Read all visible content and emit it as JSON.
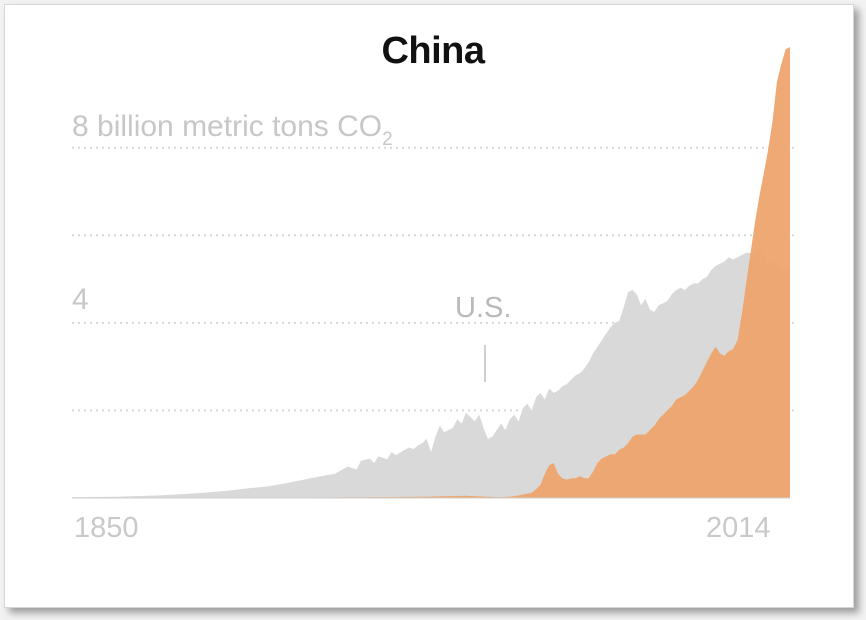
{
  "chart_data": {
    "type": "area",
    "title": "China",
    "ylabel_main": "8 billion metric tons CO",
    "ylabel_sub": "2",
    "ytick_mid": "4",
    "xtick_start": "1850",
    "xtick_end": "2014",
    "annotation": "U.S.",
    "xlim": [
      1850,
      2014
    ],
    "ylim": [
      0,
      10.3
    ],
    "gridlines": [
      2,
      4,
      6,
      8
    ],
    "colors": {
      "us": "#d9d9d9",
      "china": "#eda46d",
      "grid": "#d8d8d8"
    },
    "series": [
      {
        "name": "U.S.",
        "points": [
          [
            1850,
            0.02
          ],
          [
            1860,
            0.03
          ],
          [
            1870,
            0.06
          ],
          [
            1875,
            0.09
          ],
          [
            1880,
            0.12
          ],
          [
            1885,
            0.16
          ],
          [
            1890,
            0.22
          ],
          [
            1895,
            0.27
          ],
          [
            1900,
            0.36
          ],
          [
            1905,
            0.46
          ],
          [
            1908,
            0.52
          ],
          [
            1910,
            0.55
          ],
          [
            1913,
            0.72
          ],
          [
            1915,
            0.65
          ],
          [
            1916,
            0.85
          ],
          [
            1918,
            0.9
          ],
          [
            1919,
            0.8
          ],
          [
            1920,
            0.95
          ],
          [
            1921,
            0.92
          ],
          [
            1922,
            0.88
          ],
          [
            1923,
            1.05
          ],
          [
            1924,
            0.98
          ],
          [
            1926,
            1.1
          ],
          [
            1927,
            1.15
          ],
          [
            1928,
            1.12
          ],
          [
            1929,
            1.2
          ],
          [
            1930,
            1.25
          ],
          [
            1931,
            1.35
          ],
          [
            1932,
            1.05
          ],
          [
            1933,
            1.4
          ],
          [
            1934,
            1.65
          ],
          [
            1935,
            1.5
          ],
          [
            1936,
            1.55
          ],
          [
            1937,
            1.6
          ],
          [
            1938,
            1.8
          ],
          [
            1939,
            1.7
          ],
          [
            1940,
            1.95
          ],
          [
            1941,
            1.85
          ],
          [
            1942,
            1.75
          ],
          [
            1943,
            1.9
          ],
          [
            1944,
            1.6
          ],
          [
            1945,
            1.35
          ],
          [
            1946,
            1.4
          ],
          [
            1947,
            1.55
          ],
          [
            1948,
            1.7
          ],
          [
            1949,
            1.55
          ],
          [
            1950,
            1.8
          ],
          [
            1951,
            1.9
          ],
          [
            1952,
            1.75
          ],
          [
            1953,
            2.05
          ],
          [
            1954,
            2.15
          ],
          [
            1955,
            2.0
          ],
          [
            1956,
            2.3
          ],
          [
            1957,
            2.4
          ],
          [
            1958,
            2.25
          ],
          [
            1959,
            2.5
          ],
          [
            1960,
            2.4
          ],
          [
            1961,
            2.45
          ],
          [
            1962,
            2.55
          ],
          [
            1963,
            2.6
          ],
          [
            1964,
            2.7
          ],
          [
            1965,
            2.8
          ],
          [
            1966,
            2.85
          ],
          [
            1967,
            2.95
          ],
          [
            1968,
            3.1
          ],
          [
            1969,
            3.3
          ],
          [
            1970,
            3.45
          ],
          [
            1971,
            3.6
          ],
          [
            1972,
            3.75
          ],
          [
            1973,
            3.9
          ],
          [
            1974,
            4.0
          ],
          [
            1975,
            4.05
          ],
          [
            1976,
            4.35
          ],
          [
            1977,
            4.7
          ],
          [
            1978,
            4.75
          ],
          [
            1979,
            4.65
          ],
          [
            1980,
            4.4
          ],
          [
            1981,
            4.55
          ],
          [
            1982,
            4.3
          ],
          [
            1983,
            4.25
          ],
          [
            1984,
            4.4
          ],
          [
            1985,
            4.45
          ],
          [
            1986,
            4.5
          ],
          [
            1987,
            4.65
          ],
          [
            1988,
            4.75
          ],
          [
            1989,
            4.8
          ],
          [
            1990,
            4.75
          ],
          [
            1991,
            4.85
          ],
          [
            1992,
            4.9
          ],
          [
            1993,
            4.9
          ],
          [
            1994,
            5.0
          ],
          [
            1995,
            5.05
          ],
          [
            1996,
            5.2
          ],
          [
            1997,
            5.3
          ],
          [
            1998,
            5.35
          ],
          [
            1999,
            5.4
          ],
          [
            2000,
            5.5
          ],
          [
            2001,
            5.45
          ],
          [
            2002,
            5.5
          ],
          [
            2003,
            5.55
          ],
          [
            2004,
            5.6
          ],
          [
            2005,
            5.6
          ],
          [
            2006,
            5.55
          ],
          [
            2007,
            5.65
          ],
          [
            2008,
            5.55
          ],
          [
            2009,
            5.25
          ],
          [
            2010,
            5.45
          ],
          [
            2011,
            5.35
          ],
          [
            2012,
            5.15
          ],
          [
            2013,
            5.25
          ],
          [
            2014,
            5.3
          ]
        ]
      },
      {
        "name": "China",
        "points": [
          [
            1850,
            0.0
          ],
          [
            1900,
            0.01
          ],
          [
            1920,
            0.02
          ],
          [
            1930,
            0.03
          ],
          [
            1935,
            0.04
          ],
          [
            1940,
            0.05
          ],
          [
            1945,
            0.03
          ],
          [
            1948,
            0.02
          ],
          [
            1950,
            0.03
          ],
          [
            1952,
            0.06
          ],
          [
            1955,
            0.12
          ],
          [
            1956,
            0.2
          ],
          [
            1957,
            0.3
          ],
          [
            1958,
            0.55
          ],
          [
            1959,
            0.75
          ],
          [
            1960,
            0.8
          ],
          [
            1961,
            0.55
          ],
          [
            1962,
            0.45
          ],
          [
            1963,
            0.42
          ],
          [
            1964,
            0.45
          ],
          [
            1965,
            0.45
          ],
          [
            1966,
            0.5
          ],
          [
            1967,
            0.45
          ],
          [
            1968,
            0.45
          ],
          [
            1969,
            0.6
          ],
          [
            1970,
            0.8
          ],
          [
            1971,
            0.9
          ],
          [
            1972,
            0.95
          ],
          [
            1973,
            1.0
          ],
          [
            1974,
            1.0
          ],
          [
            1975,
            1.1
          ],
          [
            1976,
            1.15
          ],
          [
            1977,
            1.25
          ],
          [
            1978,
            1.4
          ],
          [
            1979,
            1.45
          ],
          [
            1980,
            1.45
          ],
          [
            1981,
            1.45
          ],
          [
            1982,
            1.55
          ],
          [
            1983,
            1.65
          ],
          [
            1984,
            1.8
          ],
          [
            1985,
            1.9
          ],
          [
            1986,
            2.0
          ],
          [
            1987,
            2.1
          ],
          [
            1988,
            2.25
          ],
          [
            1989,
            2.3
          ],
          [
            1990,
            2.35
          ],
          [
            1991,
            2.45
          ],
          [
            1992,
            2.55
          ],
          [
            1993,
            2.7
          ],
          [
            1994,
            2.9
          ],
          [
            1995,
            3.1
          ],
          [
            1996,
            3.3
          ],
          [
            1997,
            3.45
          ],
          [
            1998,
            3.3
          ],
          [
            1999,
            3.25
          ],
          [
            2000,
            3.35
          ],
          [
            2001,
            3.4
          ],
          [
            2002,
            3.6
          ],
          [
            2003,
            4.2
          ],
          [
            2004,
            4.9
          ],
          [
            2005,
            5.6
          ],
          [
            2006,
            6.3
          ],
          [
            2007,
            6.9
          ],
          [
            2008,
            7.4
          ],
          [
            2009,
            7.95
          ],
          [
            2010,
            8.6
          ],
          [
            2011,
            9.5
          ],
          [
            2012,
            9.9
          ],
          [
            2013,
            10.25
          ],
          [
            2014,
            10.3
          ]
        ]
      }
    ]
  }
}
